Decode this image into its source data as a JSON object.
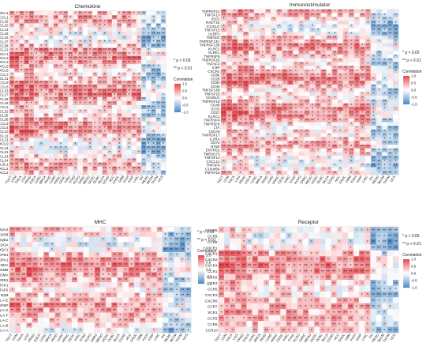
{
  "colors": {
    "high": "#e8434b",
    "mid": "#ffffff",
    "low": "#4a88c4",
    "grid": "#c8c8c8",
    "text": "#222222"
  },
  "legend": {
    "sig1": "* p < 0.05",
    "sig2": "** p < 0.01",
    "title": "Correlation",
    "ticks": [
      "1.0",
      "0.5",
      "0.0",
      "-0.5",
      "-1.0"
    ],
    "tick_values": [
      1.0,
      0.5,
      0.0,
      -0.5,
      -1.0
    ]
  },
  "cancers": [
    "TGCT",
    "UVM",
    "THCA",
    "LGG",
    "PRAD",
    "ESCA",
    "LUSC",
    "BRCA",
    "PAAD",
    "LUAD",
    "HNSC",
    "CESC",
    "KIRC",
    "STAD",
    "PCPG",
    "SARC",
    "MESO",
    "UCEC",
    "DLBC",
    "BLCA",
    "COAD",
    "ACC",
    "CHOL",
    "GBM",
    "KICH",
    "KIRP",
    "LIHC",
    "OV",
    "READ",
    "SKCM",
    "THYM",
    "UCS"
  ],
  "chart_data": [
    {
      "type": "heatmap",
      "title": "Chemokine",
      "rows": [
        "CX3CL1",
        "CCL1",
        "CCL16",
        "CCL20",
        "CXCL14",
        "CXCL16",
        "CCL15",
        "CCL27",
        "CCL28",
        "CXCL12",
        "CXCL1",
        "CXCL2",
        "CXCL3",
        "CXCL5",
        "CXCL6",
        "CCL7",
        "CCL11",
        "CCL5",
        "CCL8",
        "CCL13",
        "CCL17",
        "CCL18",
        "CCL19",
        "CCL2",
        "CCL22",
        "CCL25",
        "CCL26",
        "CCL3",
        "CCL4",
        "CXCL10",
        "CXCL11",
        "CXCL13",
        "CXCL9",
        "CCL14",
        "CCL21",
        "CCL23",
        "CCL24",
        "CCL3L1",
        "XCL1",
        "XCL2"
      ],
      "columns_ref": "cancers",
      "value_range": [
        -1,
        1
      ],
      "pattern_note": "mostly positive correlations (red), scattered negative (blue) in right-hand columns"
    },
    {
      "type": "heatmap",
      "title": "Immunostimulator",
      "rows": [
        "TNFRSF14",
        "TNFSF13",
        "IDO1",
        "RAET1E",
        "ICOSLG",
        "TNFSF15",
        "ULBP1",
        "TMIGD2",
        "TNFRSF13C",
        "TNFRSF13B",
        "KLRC1",
        "KLRK1",
        "TNFRSF9",
        "TNFRSF25",
        "TNFSF4",
        "IL6R",
        "CXCR4",
        "CD86",
        "CD28",
        "CD80",
        "CD40",
        "TNFSF13B",
        "TNFSF18",
        "CD40LG",
        "TNFRSF18",
        "CD48",
        "ICOS",
        "CD27",
        "KLRC1",
        "TNFRSF4",
        "TNFRSF8",
        "LTA",
        "CD276",
        "TNFRSF17",
        "IL2RA",
        "CD70",
        "NT5E",
        "ENTPD1",
        "TMEM173",
        "TNFSF14",
        "CXCL12",
        "TNFSF9",
        "C10orf54",
        "TNFSF18"
      ],
      "columns_ref": "cancers",
      "value_range": [
        -1,
        1
      ],
      "pattern_note": "strongly positive block in middle rows, negative at far-right columns"
    },
    {
      "type": "heatmap",
      "title": "MHC",
      "rows": [
        "HLA-DQA2",
        "HLA-DOB",
        "HLA-DQB1",
        "HLA-DOA",
        "HLA-DQA1",
        "HLA-DPB1",
        "HLA-DPA1",
        "HLA-DRA",
        "HLA-DMB",
        "HLA-DMA",
        "HLA-DRB1",
        "TAP1",
        "TAP2",
        "B2M",
        "HLA-E",
        "TAPBP",
        "HLA-G",
        "HLA-F",
        "HLA-C",
        "HLA-B",
        "HLA-A"
      ],
      "columns_ref": "cancers",
      "value_range": [
        -1,
        1
      ],
      "pattern_note": "positive across most cancers; negative patches in rightmost columns"
    },
    {
      "type": "heatmap",
      "title": "Receptor",
      "rows": [
        "CXCR5",
        "CCR9",
        "CCR8",
        "CX3CR1",
        "CXCR1",
        "CXCR2",
        "CXCR4",
        "CCR1",
        "CCR2",
        "CCR4",
        "CCR5",
        "CXCR3",
        "CXCR6",
        "CCR7",
        "XCR1",
        "CCR3",
        "CCR6",
        "CCR10"
      ],
      "columns_ref": "cancers",
      "value_range": [
        -1,
        1
      ],
      "pattern_note": "positive block in middle rows, mixed at bottom"
    }
  ]
}
